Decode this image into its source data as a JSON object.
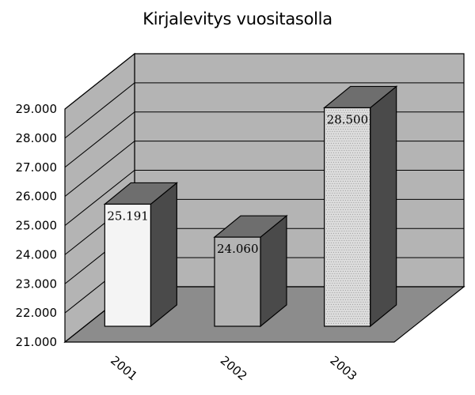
{
  "title": "Kirjalevitys vuositasolla",
  "chart_data": {
    "type": "bar",
    "title": "Kirjalevitys vuositasolla",
    "categories": [
      "2001",
      "2002",
      "2003"
    ],
    "values": [
      25191,
      24060,
      28500
    ],
    "data_labels": [
      "25.191",
      "24.060",
      "28.500"
    ],
    "yticks": [
      21000,
      22000,
      23000,
      24000,
      25000,
      26000,
      27000,
      28000,
      29000
    ],
    "ytick_labels": [
      "21.000",
      "22.000",
      "23.000",
      "24.000",
      "25.000",
      "26.000",
      "27.000",
      "28.000",
      "29.000"
    ],
    "ylim": [
      21000,
      29000
    ],
    "xlabel": "",
    "ylabel": "",
    "grid": true,
    "three_d": true,
    "bar_colors": [
      "#f4f4f4",
      "#b4b4b4",
      "#dcdcdc"
    ],
    "wall_color": "#b4b4b4",
    "floor_color": "#8c8c8c"
  }
}
